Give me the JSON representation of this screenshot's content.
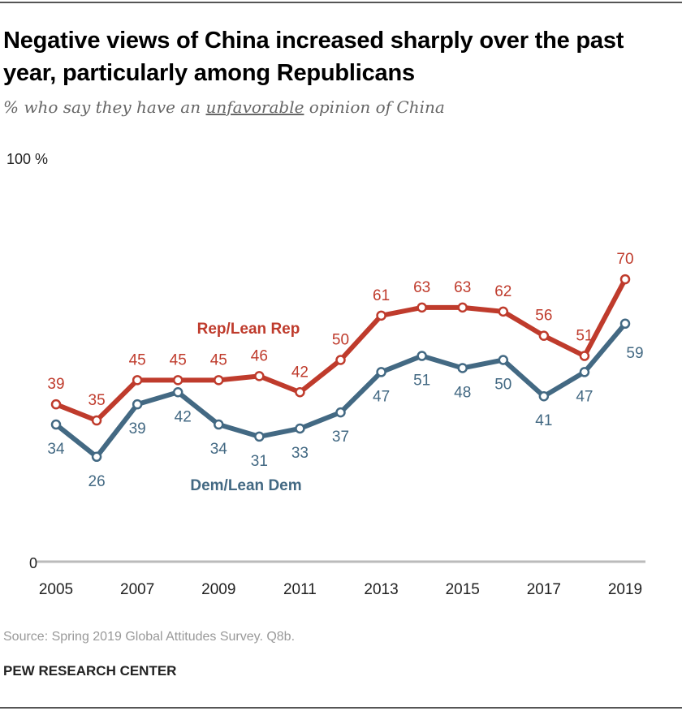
{
  "title": "Negative views of China increased sharply over the past year, particularly among Republicans",
  "subtitle": {
    "before": "% who say they have an ",
    "underlined": "unfavorable",
    "after": " opinion of China"
  },
  "source": "Source: Spring 2019 Global Attitudes Survey. Q8b.",
  "brand": "PEW RESEARCH CENTER",
  "chart_data": {
    "type": "line",
    "x": [
      2005,
      2006,
      2007,
      2008,
      2009,
      2010,
      2011,
      2012,
      2013,
      2014,
      2015,
      2016,
      2017,
      2018,
      2019
    ],
    "x_tick_labels": [
      "2005",
      "2007",
      "2009",
      "2011",
      "2013",
      "2015",
      "2017",
      "2019"
    ],
    "y_tick_labels": [
      "0",
      "100 %"
    ],
    "ylim": [
      0,
      100
    ],
    "grid": false,
    "series": [
      {
        "name": "Rep/Lean Rep",
        "color": "#bf3b2c",
        "values": [
          39,
          35,
          45,
          45,
          45,
          46,
          42,
          50,
          61,
          63,
          63,
          62,
          56,
          51,
          70
        ]
      },
      {
        "name": "Dem/Lean Dem",
        "color": "#436983",
        "values": [
          34,
          26,
          39,
          42,
          34,
          31,
          33,
          37,
          47,
          51,
          48,
          50,
          41,
          47,
          59
        ]
      }
    ]
  }
}
